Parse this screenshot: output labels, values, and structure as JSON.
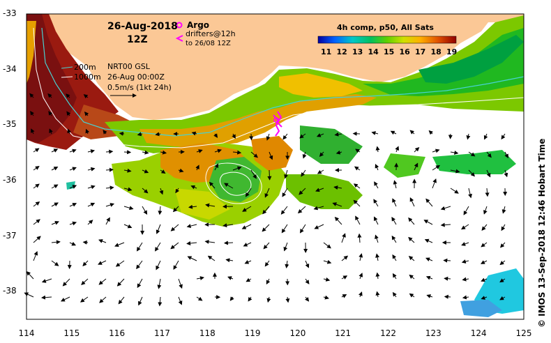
{
  "map": {
    "date": "26-Aug-2018",
    "hour": "12Z",
    "argo_label": "Argo",
    "drifters_label": "drifters@12h",
    "drifters_sub": "to 26/08 12Z",
    "isobath_200": "200m",
    "isobath_1000": "1000m",
    "product": "NRT00 GSL",
    "product_date": "26-Aug 00:00Z",
    "vector_scale": "0.5m/s (1kt 24h)",
    "colorbar_title": "4h comp, p50, All Sats",
    "colorbar_ticks": [
      "11",
      "12",
      "13",
      "14",
      "15",
      "16",
      "17",
      "18",
      "19"
    ],
    "credit": "© IMOS 13-Sep-2018 12:46 Hobart Time",
    "lat_ticks": [
      "-33",
      "-34",
      "-35",
      "-36",
      "-37",
      "-38"
    ],
    "lon_ticks": [
      "114",
      "115",
      "116",
      "117",
      "118",
      "119",
      "120",
      "121",
      "122",
      "123",
      "124",
      "125"
    ],
    "lon_range": [
      114,
      125
    ],
    "lat_range": [
      -38.5,
      -33
    ],
    "colors": {
      "land": "#fbc896",
      "sea_blank": "#ffffff",
      "shelf_line": "#48d2d2",
      "drifter": "#ff00ff"
    }
  }
}
